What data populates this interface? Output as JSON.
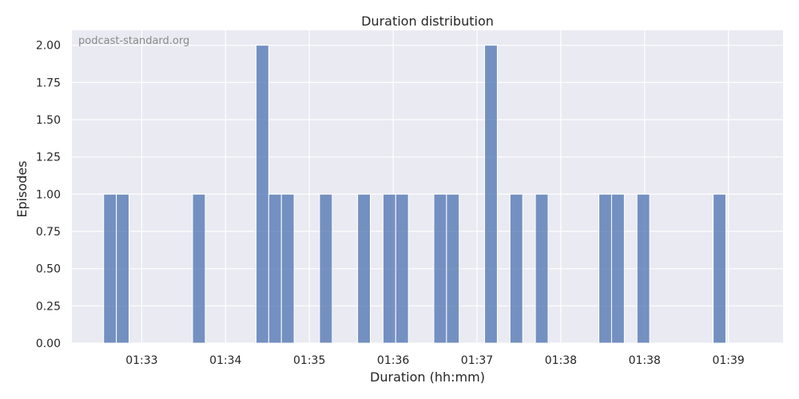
{
  "chart_data": {
    "type": "bar",
    "title": "Duration distribution",
    "xlabel": "Duration (hh:mm)",
    "ylabel": "Episodes",
    "watermark": "podcast-standard.org",
    "grid": true,
    "ylim": [
      0,
      2.1
    ],
    "xlim": [
      0,
      56
    ],
    "yticks": [
      0.0,
      0.25,
      0.5,
      0.75,
      1.0,
      1.25,
      1.5,
      1.75,
      2.0
    ],
    "ytick_labels": [
      "0.00",
      "0.25",
      "0.50",
      "0.75",
      "1.00",
      "1.25",
      "1.50",
      "1.75",
      "2.00"
    ],
    "xticks": [
      {
        "pos": 5.5,
        "label": "01:33"
      },
      {
        "pos": 12.1,
        "label": "01:34"
      },
      {
        "pos": 18.7,
        "label": "01:35"
      },
      {
        "pos": 25.3,
        "label": "01:36"
      },
      {
        "pos": 31.9,
        "label": "01:37"
      },
      {
        "pos": 38.5,
        "label": "01:38"
      },
      {
        "pos": 45.1,
        "label": "01:38"
      },
      {
        "pos": 51.7,
        "label": "01:39"
      }
    ],
    "bin_width": 1,
    "bins": [
      {
        "start": 2.5,
        "value": 1
      },
      {
        "start": 3.5,
        "value": 1
      },
      {
        "start": 9.5,
        "value": 1
      },
      {
        "start": 14.5,
        "value": 2
      },
      {
        "start": 15.5,
        "value": 1
      },
      {
        "start": 16.5,
        "value": 1
      },
      {
        "start": 19.5,
        "value": 1
      },
      {
        "start": 22.5,
        "value": 1
      },
      {
        "start": 24.5,
        "value": 1
      },
      {
        "start": 25.5,
        "value": 1
      },
      {
        "start": 28.5,
        "value": 1
      },
      {
        "start": 29.5,
        "value": 1
      },
      {
        "start": 32.5,
        "value": 2
      },
      {
        "start": 34.5,
        "value": 1
      },
      {
        "start": 36.5,
        "value": 1
      },
      {
        "start": 41.5,
        "value": 1
      },
      {
        "start": 42.5,
        "value": 1
      },
      {
        "start": 44.5,
        "value": 1
      },
      {
        "start": 50.5,
        "value": 1
      }
    ]
  }
}
